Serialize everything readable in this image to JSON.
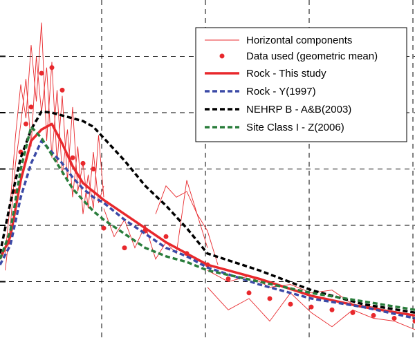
{
  "chart_data": {
    "type": "line",
    "title": "",
    "xlabel": "",
    "ylabel": "",
    "xlim": [
      -0.0,
      4.0
    ],
    "ylim": [
      0.0,
      6.0
    ],
    "grid": true,
    "legend_position": "top-right",
    "series": [
      {
        "name": "Horizontal components",
        "style": "thin-solid",
        "color": "#e8282c",
        "components": [
          {
            "x": [
              0.05,
              0.1,
              0.15,
              0.2,
              0.25,
              0.3,
              0.35,
              0.4,
              0.45,
              0.5,
              0.55,
              0.6,
              0.65,
              0.7,
              0.75,
              0.8,
              0.85,
              0.9,
              0.95,
              1.0
            ],
            "y": [
              1.5,
              2.4,
              3.6,
              4.5,
              3.9,
              5.2,
              4.2,
              5.6,
              3.5,
              4.9,
              3.1,
              4.3,
              2.8,
              4.1,
              2.6,
              3.1,
              2.3,
              3.3,
              2.4,
              2.7
            ]
          },
          {
            "x": [
              0.05,
              0.1,
              0.15,
              0.2,
              0.25,
              0.3,
              0.35,
              0.4,
              0.45,
              0.5,
              0.55,
              0.6,
              0.65,
              0.7,
              0.75,
              0.8,
              0.85,
              0.9,
              0.95,
              1.0
            ],
            "y": [
              1.2,
              2.0,
              3.1,
              3.8,
              4.6,
              3.4,
              5.0,
              4.0,
              4.8,
              3.2,
              4.4,
              2.9,
              3.7,
              2.5,
              3.4,
              2.2,
              2.9,
              2.3,
              3.6,
              2.5
            ]
          },
          {
            "x": [
              1.0,
              1.1,
              1.2,
              1.3,
              1.4,
              1.5,
              1.6,
              1.7,
              1.8,
              1.9,
              2.0
            ],
            "y": [
              2.3,
              1.8,
              2.1,
              1.6,
              2.0,
              1.4,
              1.7,
              1.5,
              2.8,
              2.2,
              1.6
            ]
          },
          {
            "x": [
              1.5,
              1.6,
              1.7,
              1.8,
              1.9,
              2.0,
              2.1
            ],
            "y": [
              2.2,
              2.7,
              2.5,
              2.6,
              2.2,
              1.9,
              1.3
            ]
          },
          {
            "x": [
              2.0,
              2.2,
              2.4,
              2.6,
              2.8,
              3.0,
              3.2,
              3.4,
              3.6,
              3.8,
              4.0
            ],
            "y": [
              1.2,
              1.0,
              1.1,
              0.9,
              0.95,
              0.8,
              0.85,
              0.6,
              0.55,
              0.45,
              0.4
            ]
          },
          {
            "x": [
              2.0,
              2.2,
              2.4,
              2.6,
              2.8,
              3.0,
              3.2,
              3.4,
              3.6,
              3.8,
              4.0
            ],
            "y": [
              0.9,
              0.5,
              0.7,
              0.3,
              0.8,
              0.45,
              0.2,
              0.5,
              0.35,
              0.3,
              0.15
            ]
          }
        ]
      },
      {
        "name": "Data used (geometric mean)",
        "style": "markers",
        "color": "#e8282c",
        "x": [
          0.08,
          0.15,
          0.2,
          0.25,
          0.3,
          0.4,
          0.5,
          0.6,
          0.7,
          0.8,
          0.9,
          1.0,
          1.2,
          1.4,
          1.6,
          1.8,
          2.0,
          2.2,
          2.4,
          2.6,
          2.8,
          3.0,
          3.2,
          3.4,
          3.6,
          3.8,
          4.0
        ],
        "y": [
          1.7,
          2.6,
          3.3,
          3.8,
          4.1,
          4.7,
          4.8,
          4.4,
          3.2,
          3.1,
          3.0,
          1.95,
          1.6,
          1.9,
          1.8,
          1.5,
          1.3,
          1.05,
          0.8,
          0.7,
          0.6,
          0.55,
          0.5,
          0.45,
          0.4,
          0.35,
          0.3
        ]
      },
      {
        "name": "Rock - This study",
        "style": "thick-solid",
        "color": "#e8282c",
        "x": [
          0.0,
          0.1,
          0.2,
          0.3,
          0.4,
          0.5,
          0.6,
          0.7,
          0.8,
          0.9,
          1.0,
          1.2,
          1.4,
          1.6,
          1.8,
          2.0,
          2.5,
          3.0,
          3.5,
          4.0
        ],
        "y": [
          1.4,
          1.8,
          2.8,
          3.5,
          3.7,
          3.8,
          3.45,
          3.05,
          2.75,
          2.6,
          2.45,
          2.2,
          1.95,
          1.7,
          1.5,
          1.3,
          1.05,
          0.75,
          0.55,
          0.4
        ]
      },
      {
        "name": "Rock - Y(1997)",
        "style": "thick-dashed",
        "color": "#3b4aa6",
        "x": [
          0.0,
          0.1,
          0.2,
          0.3,
          0.4,
          0.5,
          0.6,
          0.7,
          0.8,
          0.9,
          1.0,
          1.2,
          1.4,
          1.6,
          1.8,
          2.0,
          2.5,
          3.0,
          3.5,
          4.0
        ],
        "y": [
          1.3,
          1.65,
          2.5,
          3.1,
          3.5,
          3.3,
          3.1,
          2.85,
          2.65,
          2.5,
          2.4,
          2.1,
          1.85,
          1.6,
          1.45,
          1.25,
          0.95,
          0.7,
          0.55,
          0.35
        ]
      },
      {
        "name": "NEHRP B - A&B(2003)",
        "style": "thick-dashed",
        "color": "#000000",
        "x": [
          0.0,
          0.1,
          0.2,
          0.3,
          0.4,
          0.5,
          0.6,
          0.7,
          0.8,
          0.9,
          1.0,
          1.2,
          1.4,
          1.6,
          1.8,
          2.0,
          2.5,
          3.0,
          3.5,
          4.0
        ],
        "y": [
          1.5,
          2.4,
          3.2,
          3.7,
          4.02,
          4.0,
          3.95,
          3.9,
          3.85,
          3.75,
          3.55,
          3.15,
          2.7,
          2.35,
          1.95,
          1.5,
          1.2,
          0.85,
          0.6,
          0.45
        ]
      },
      {
        "name": "Site Class I - Z(2006)",
        "style": "thick-dashed",
        "color": "#2a7d3c",
        "x": [
          0.0,
          0.1,
          0.2,
          0.3,
          0.4,
          0.5,
          0.6,
          0.7,
          0.8,
          0.9,
          1.0,
          1.2,
          1.4,
          1.6,
          1.8,
          2.0,
          2.5,
          3.0,
          3.5,
          4.0
        ],
        "y": [
          1.4,
          1.9,
          3.0,
          3.75,
          3.55,
          3.25,
          2.95,
          2.65,
          2.45,
          2.25,
          2.1,
          1.85,
          1.6,
          1.45,
          1.35,
          1.2,
          1.0,
          0.8,
          0.65,
          0.5
        ]
      }
    ]
  }
}
